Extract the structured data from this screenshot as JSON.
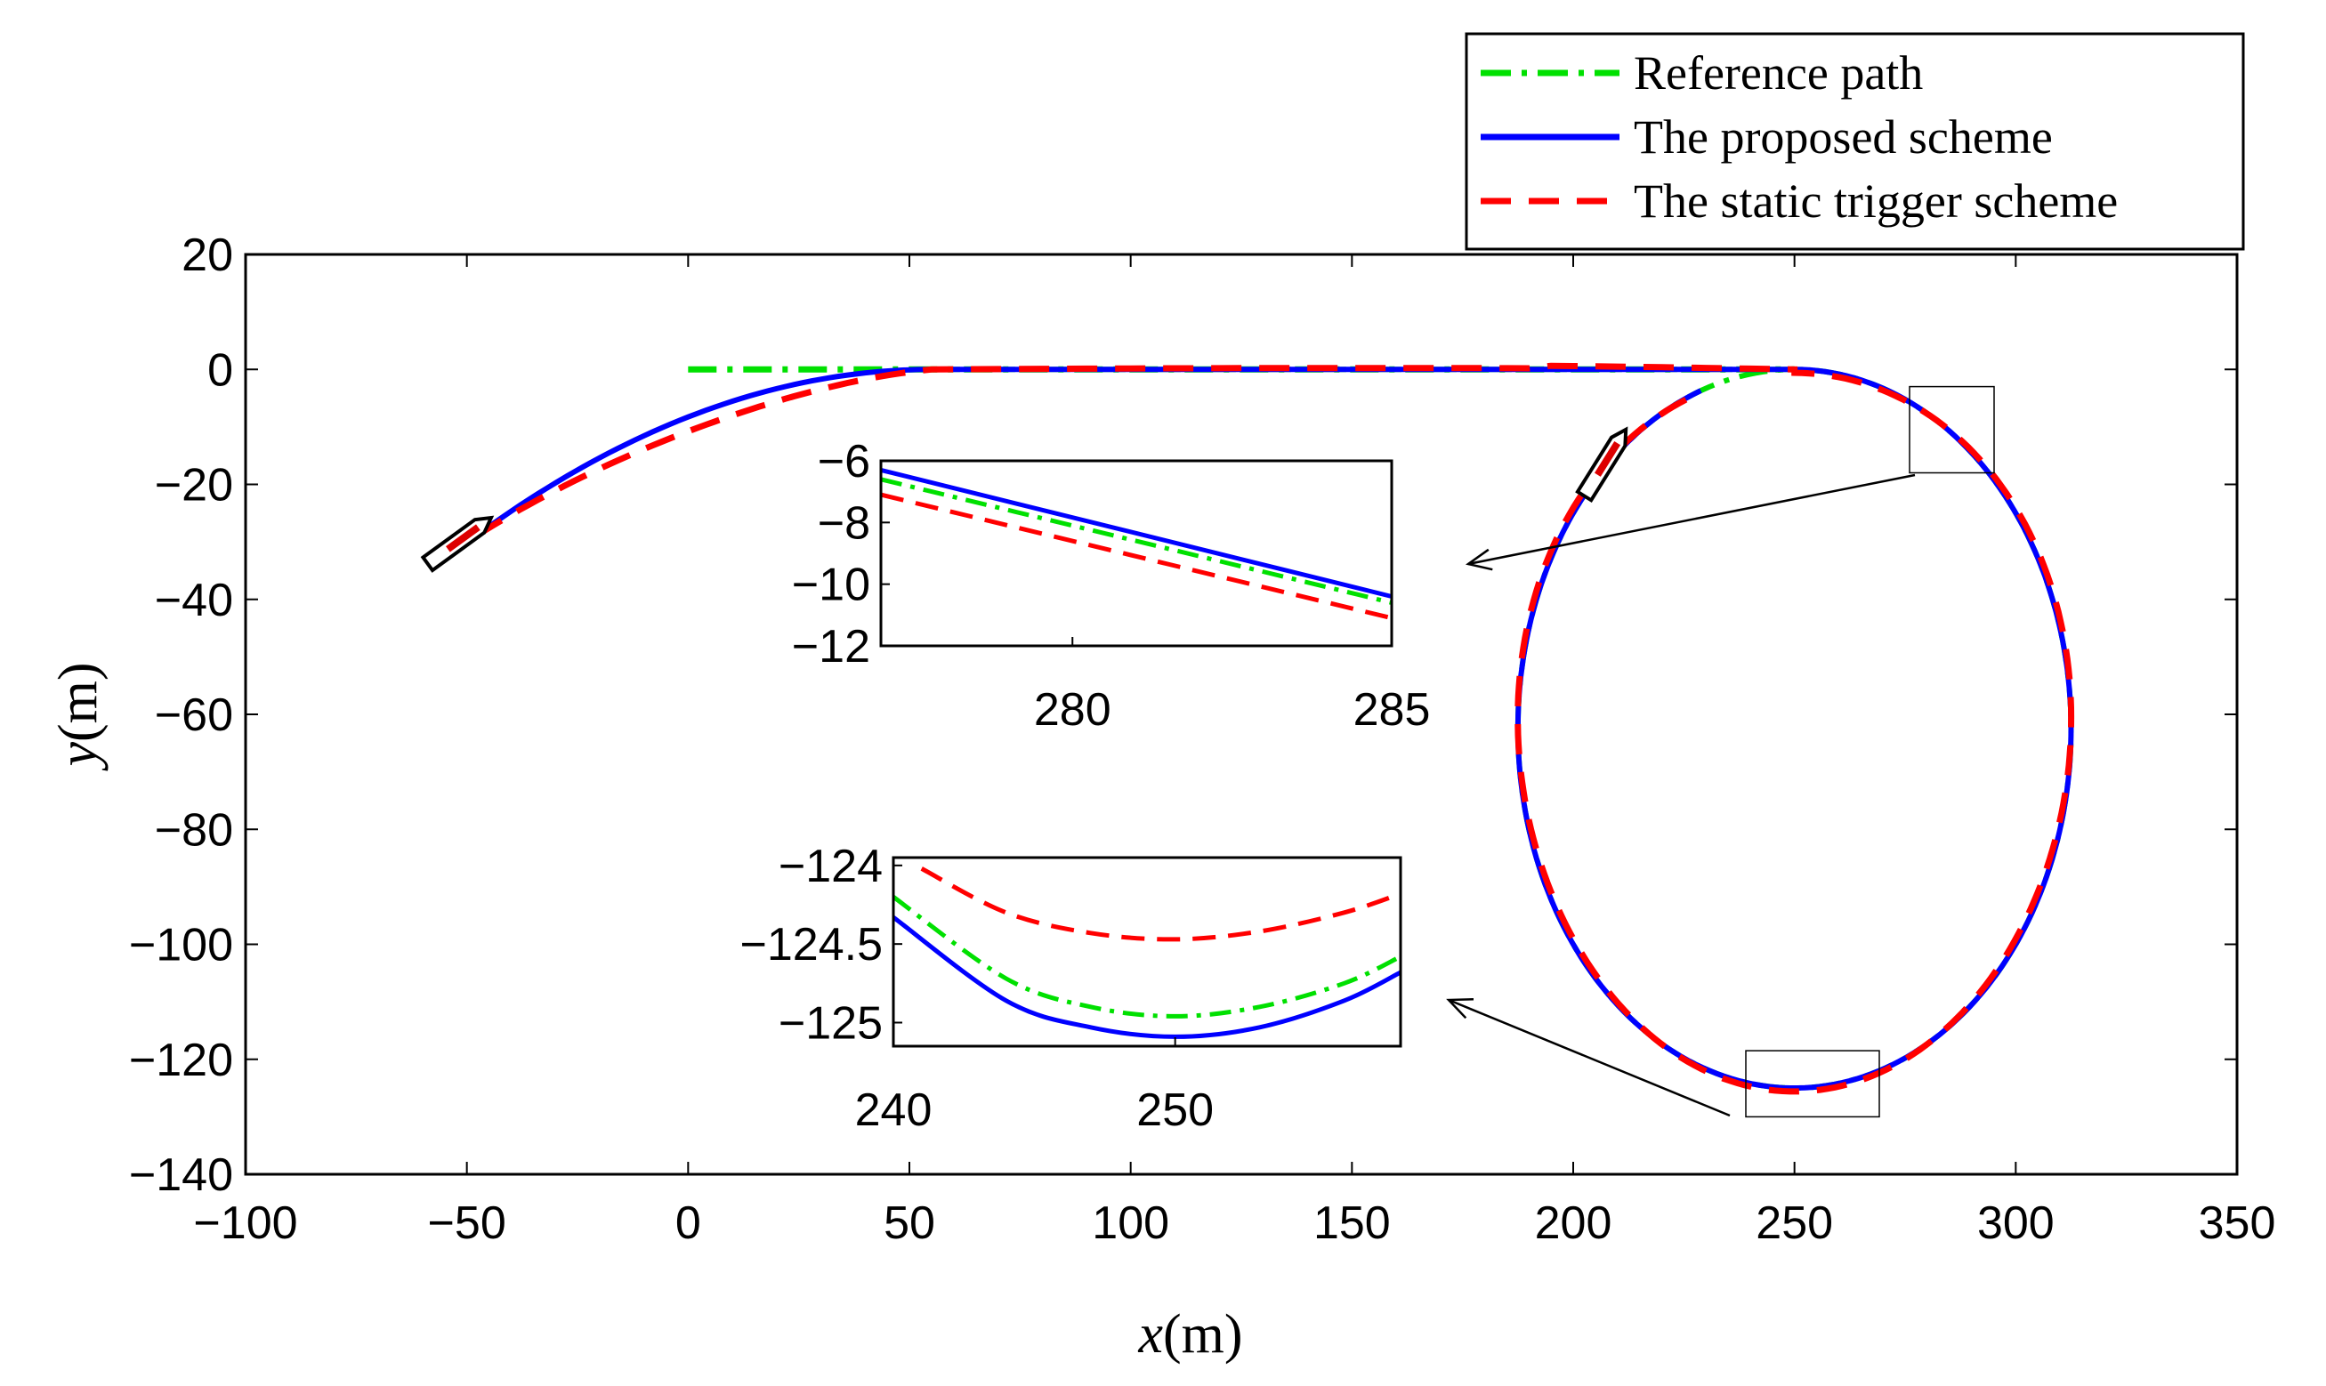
{
  "chart_data": {
    "type": "line",
    "title": "",
    "xlabel_var": "x",
    "xlabel_unit": "(m)",
    "ylabel_var": "y",
    "ylabel_unit": "(m)",
    "xlim": [
      -100,
      350
    ],
    "ylim": [
      -140,
      20
    ],
    "xticks": [
      "-100",
      "-50",
      "0",
      "50",
      "100",
      "150",
      "200",
      "250",
      "300",
      "350"
    ],
    "yticks": [
      "20",
      "0",
      "-20",
      "-40",
      "-60",
      "-80",
      "-100",
      "-120",
      "-140"
    ],
    "path_geometry": {
      "straight_start_x": 0,
      "straight_end_x": 250,
      "straight_y": 0,
      "loop_center_x": 250,
      "loop_center_y": -62.5,
      "loop_radius_x": 62.5,
      "loop_radius_y": 62.5,
      "ship_start_x": -48,
      "ship_start_y": -29
    },
    "series": [
      {
        "name": "Reference path",
        "color": "#00e000",
        "style": "dashdot"
      },
      {
        "name": "The proposed scheme",
        "color": "#0000ff",
        "style": "solid"
      },
      {
        "name": "The static trigger scheme",
        "color": "#ff0000",
        "style": "dashed"
      }
    ],
    "legend": {
      "position": "top-right"
    },
    "insets": [
      {
        "name": "zoom-1",
        "xlim": [
          277,
          285
        ],
        "ylim": [
          -12,
          -6
        ],
        "xticks": [
          "280",
          "285"
        ],
        "yticks": [
          "-6",
          "-8",
          "-10",
          "-12"
        ],
        "series": [
          {
            "name": "Reference path",
            "x": [
              277,
              285
            ],
            "y": [
              -6.6,
              -10.6
            ]
          },
          {
            "name": "The proposed scheme",
            "x": [
              277,
              285
            ],
            "y": [
              -6.3,
              -10.4
            ]
          },
          {
            "name": "The static trigger scheme",
            "x": [
              277,
              285
            ],
            "y": [
              -7.1,
              -11.1
            ]
          }
        ]
      },
      {
        "name": "zoom-2",
        "xlim": [
          240,
          258
        ],
        "ylim": [
          -125.15,
          -123.95
        ],
        "xticks": [
          "240",
          "250"
        ],
        "yticks": [
          "-124",
          "-124.5",
          "-125"
        ],
        "series": [
          {
            "name": "Reference path",
            "x": [
              240,
              244,
              247,
              250,
              253,
              256,
              258
            ],
            "y": [
              -124.2,
              -124.72,
              -124.9,
              -124.96,
              -124.9,
              -124.75,
              -124.58
            ]
          },
          {
            "name": "The proposed scheme",
            "x": [
              240,
              244,
              247,
              250,
              253,
              256,
              258
            ],
            "y": [
              -124.33,
              -124.86,
              -125.03,
              -125.09,
              -125.03,
              -124.86,
              -124.68
            ]
          },
          {
            "name": "The static trigger scheme",
            "x": [
              241,
              244,
              247,
              250,
              253,
              256,
              258
            ],
            "y": [
              -124.02,
              -124.3,
              -124.43,
              -124.47,
              -124.42,
              -124.3,
              -124.18
            ]
          }
        ]
      }
    ]
  }
}
